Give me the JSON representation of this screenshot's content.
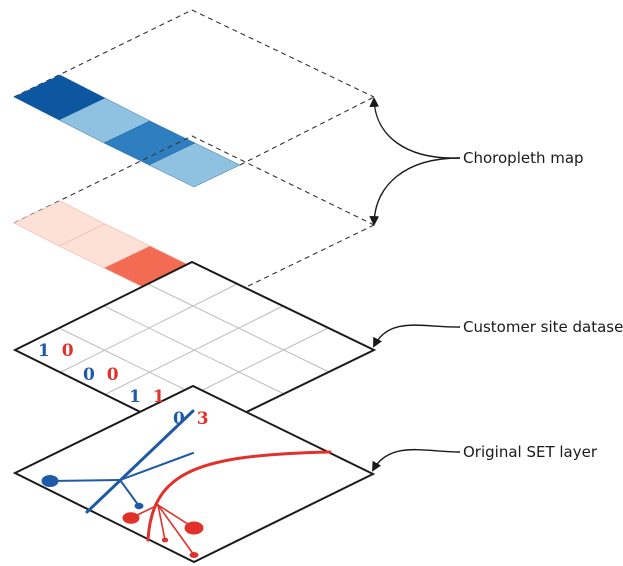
{
  "labels": {
    "choropleth": "Choropleth map",
    "customer": "Customer site dataset",
    "original": "Original SET layer"
  },
  "grid_counts": [
    {
      "blue": "1",
      "red": "0"
    },
    {
      "blue": "0",
      "red": "0"
    },
    {
      "blue": "1",
      "red": "1"
    },
    {
      "blue": "0",
      "red": "3"
    }
  ],
  "colors": {
    "blue_series": "#1f5aa6",
    "red_series": "#e0322a",
    "blue_dark": "#0d56a0",
    "blue_light": "#8fc1e0",
    "blue_mid": "#2f7fc0",
    "red_pale": "#fde0d6",
    "red_mid": "#f26b52",
    "red_dark": "#dc2a25"
  }
}
